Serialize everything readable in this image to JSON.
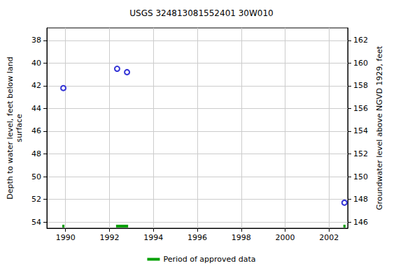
{
  "chart_data": {
    "type": "scatter",
    "title": "USGS 324813081552401 30W010",
    "x_label": "",
    "y_label": "Depth to water level, feet below land\nsurface",
    "y2_label": "Groundwater level above NGVD 1929, feet",
    "x": [
      1989.9,
      1992.35,
      1992.8,
      2002.7
    ],
    "values": [
      42.2,
      40.5,
      40.8,
      52.3
    ],
    "color": "#0000cc",
    "marker": "circle-open",
    "xlim": [
      1989.15,
      2002.85
    ],
    "xticks": [
      1990,
      1992,
      1994,
      1996,
      1998,
      2000,
      2002
    ],
    "ylim": [
      36.9,
      54.55
    ],
    "yticks": [
      38,
      40,
      42,
      44,
      46,
      48,
      50,
      52,
      54
    ],
    "y2lim": [
      163.1,
      145.45
    ],
    "y2ticks": [
      146,
      148,
      150,
      152,
      154,
      156,
      158,
      160,
      162
    ],
    "grid": true,
    "legend": "bottom",
    "approved_periods": {
      "name": "Period of approved data",
      "color": "#00a000",
      "ranges": [
        [
          1989.85,
          1989.95
        ],
        [
          1992.3,
          1992.85
        ],
        [
          2002.65,
          2002.75
        ]
      ]
    }
  }
}
